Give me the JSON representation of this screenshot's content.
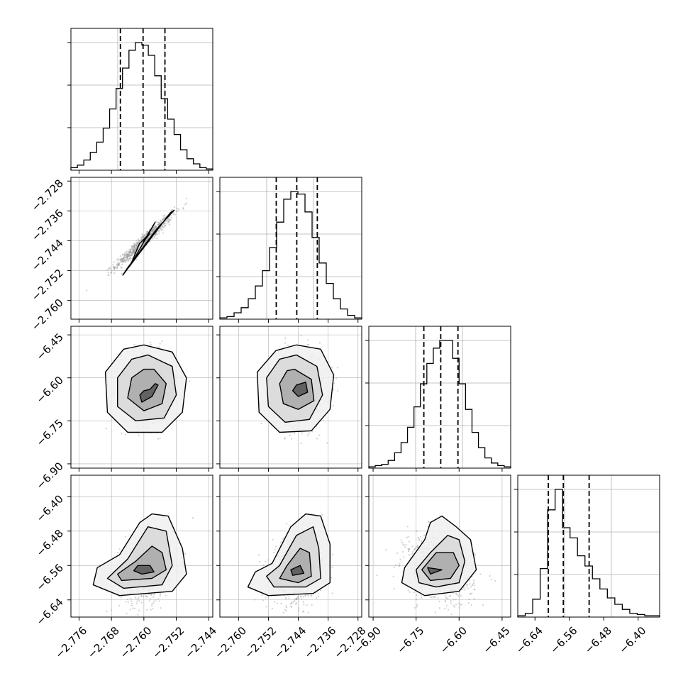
{
  "colors": {
    "axis": "#000000",
    "grid": "#b0b0b0",
    "scatter": "#9a9a9a",
    "contour": "#000000",
    "quantile": "#000000"
  },
  "chart_data": {
    "type": "corner",
    "num_params": 4,
    "quantiles": [
      0.16,
      0.5,
      0.84
    ],
    "params": [
      {
        "range": [
          -2.778,
          -2.743
        ],
        "ticks": [
          -2.776,
          -2.768,
          -2.76,
          -2.752,
          -2.744
        ],
        "tick_labels": [
          "−2.776",
          "−2.768",
          "−2.760",
          "−2.752",
          "−2.744"
        ],
        "quantile_values": [
          -2.7658,
          -2.7602,
          -2.7548
        ]
      },
      {
        "range": [
          -2.765,
          -2.727
        ],
        "ticks": [
          -2.76,
          -2.752,
          -2.744,
          -2.736,
          -2.728
        ],
        "tick_labels": [
          "−2.760",
          "−2.752",
          "−2.744",
          "−2.736",
          "−2.728"
        ],
        "quantile_values": [
          -2.7499,
          -2.7444,
          -2.7389
        ]
      },
      {
        "range": [
          -6.915,
          -6.42
        ],
        "ticks": [
          -6.9,
          -6.75,
          -6.6,
          -6.45
        ],
        "tick_labels": [
          "−6.90",
          "−6.75",
          "−6.60",
          "−6.45"
        ],
        "quantile_values": [
          -6.723,
          -6.664,
          -6.604
        ]
      },
      {
        "range": [
          -6.68,
          -6.35
        ],
        "ticks": [
          -6.64,
          -6.56,
          -6.48,
          -6.4
        ],
        "tick_labels": [
          "−6.64",
          "−6.56",
          "−6.48",
          "−6.40"
        ],
        "quantile_values": [
          -6.609,
          -6.574,
          -6.514
        ]
      }
    ],
    "histograms": [
      [
        2,
        4,
        8,
        14,
        22,
        33,
        48,
        64,
        80,
        94,
        100,
        98,
        90,
        74,
        56,
        40,
        28,
        16,
        9,
        5,
        2,
        1
      ],
      [
        1,
        2,
        5,
        9,
        16,
        26,
        38,
        56,
        76,
        94,
        100,
        98,
        84,
        64,
        44,
        28,
        16,
        8,
        3,
        1
      ],
      [
        1,
        2,
        3,
        6,
        12,
        20,
        32,
        48,
        66,
        82,
        94,
        100,
        100,
        86,
        66,
        46,
        28,
        16,
        8,
        4,
        2,
        1
      ],
      [
        1,
        3,
        14,
        38,
        84,
        100,
        70,
        62,
        48,
        40,
        30,
        22,
        15,
        10,
        6,
        3,
        2,
        1,
        1
      ]
    ],
    "pairs": [
      {
        "row": 1,
        "col": 0,
        "center": [
          -2.76,
          -2.744
        ],
        "sd": [
          0.0035,
          0.0035
        ],
        "corr": 0.97,
        "contours": [
          [
            [
              -2.7633,
              -2.7505
            ],
            [
              -2.7572,
              -2.739
            ],
            [
              -2.7602,
              -2.7444
            ],
            [
              -2.7586,
              -2.7421
            ],
            [
              -2.7611,
              -2.7448
            ]
          ],
          [
            [
              -2.7652,
              -2.7532
            ],
            [
              -2.7535,
              -2.7365
            ],
            [
              -2.7525,
              -2.7358
            ],
            [
              -2.7568,
              -2.7408
            ],
            [
              -2.7642,
              -2.7515
            ]
          ]
        ]
      },
      {
        "row": 2,
        "col": 0,
        "center": [
          -2.759,
          -6.64
        ],
        "sd": [
          0.0032,
          0.065
        ],
        "corr": 0.0,
        "contours": [
          [
            [
              -2.7585,
              -6.64
            ],
            [
              -2.7572,
              -6.62
            ],
            [
              -2.7565,
              -6.625
            ],
            [
              -2.758,
              -6.665
            ],
            [
              -2.7605,
              -6.685
            ],
            [
              -2.761,
              -6.66
            ],
            [
              -2.76,
              -6.645
            ]
          ],
          [
            [
              -2.7575,
              -6.57
            ],
            [
              -2.7545,
              -6.62
            ],
            [
              -2.7555,
              -6.69
            ],
            [
              -2.76,
              -6.715
            ],
            [
              -2.764,
              -6.67
            ],
            [
              -2.763,
              -6.6
            ],
            [
              -2.76,
              -6.57
            ]
          ],
          [
            [
              -2.759,
              -6.52
            ],
            [
              -2.753,
              -6.56
            ],
            [
              -2.752,
              -6.66
            ],
            [
              -2.755,
              -6.74
            ],
            [
              -2.762,
              -6.75
            ],
            [
              -2.7665,
              -6.7
            ],
            [
              -2.7665,
              -6.6
            ],
            [
              -2.763,
              -6.535
            ]
          ],
          [
            [
              -2.76,
              -6.485
            ],
            [
              -2.753,
              -6.51
            ],
            [
              -2.7495,
              -6.6
            ],
            [
              -2.7505,
              -6.72
            ],
            [
              -2.7555,
              -6.79
            ],
            [
              -2.764,
              -6.79
            ],
            [
              -2.769,
              -6.72
            ],
            [
              -2.7695,
              -6.58
            ],
            [
              -2.765,
              -6.5
            ]
          ]
        ]
      },
      {
        "row": 2,
        "col": 1,
        "center": [
          -2.7435,
          -6.64
        ],
        "sd": [
          0.0035,
          0.065
        ],
        "corr": 0.0,
        "contours": [
          [
            [
              -2.7445,
              -6.625
            ],
            [
              -2.742,
              -6.615
            ],
            [
              -2.7415,
              -6.65
            ],
            [
              -2.744,
              -6.665
            ],
            [
              -2.7455,
              -6.645
            ]
          ],
          [
            [
              -2.745,
              -6.57
            ],
            [
              -2.7405,
              -6.605
            ],
            [
              -2.7398,
              -6.68
            ],
            [
              -2.744,
              -6.71
            ],
            [
              -2.748,
              -6.69
            ],
            [
              -2.749,
              -6.62
            ],
            [
              -2.747,
              -6.575
            ]
          ],
          [
            [
              -2.7445,
              -6.52
            ],
            [
              -2.739,
              -6.56
            ],
            [
              -2.7375,
              -6.66
            ],
            [
              -2.741,
              -6.745
            ],
            [
              -2.7475,
              -6.755
            ],
            [
              -2.752,
              -6.7
            ],
            [
              -2.7525,
              -6.6
            ],
            [
              -2.749,
              -6.535
            ]
          ],
          [
            [
              -2.7445,
              -6.485
            ],
            [
              -2.738,
              -6.5
            ],
            [
              -2.7345,
              -6.59
            ],
            [
              -2.7355,
              -6.71
            ],
            [
              -2.7405,
              -6.785
            ],
            [
              -2.749,
              -6.79
            ],
            [
              -2.7545,
              -6.72
            ],
            [
              -2.755,
              -6.58
            ],
            [
              -2.75,
              -6.505
            ]
          ]
        ]
      },
      {
        "row": 3,
        "col": 0,
        "center": [
          -2.7595,
          -6.57
        ],
        "sd": [
          0.0032,
          0.04
        ],
        "corr": 0.25,
        "contours": [
          [
            [
              -2.7615,
              -6.56
            ],
            [
              -2.7585,
              -6.56
            ],
            [
              -2.7575,
              -6.575
            ],
            [
              -2.7605,
              -6.58
            ],
            [
              -2.7625,
              -6.572
            ]
          ],
          [
            [
              -2.762,
              -6.55
            ],
            [
              -2.758,
              -6.515
            ],
            [
              -2.7555,
              -6.53
            ],
            [
              -2.7545,
              -6.57
            ],
            [
              -2.758,
              -6.59
            ],
            [
              -2.7655,
              -6.595
            ],
            [
              -2.7665,
              -6.58
            ]
          ],
          [
            [
              -2.764,
              -6.545
            ],
            [
              -2.759,
              -6.47
            ],
            [
              -2.7545,
              -6.48
            ],
            [
              -2.753,
              -6.56
            ],
            [
              -2.7555,
              -6.605
            ],
            [
              -2.765,
              -6.613
            ],
            [
              -2.769,
              -6.59
            ]
          ],
          [
            [
              -2.766,
              -6.535
            ],
            [
              -2.761,
              -6.46
            ],
            [
              -2.758,
              -6.44
            ],
            [
              -2.754,
              -6.445
            ],
            [
              -2.7505,
              -6.52
            ],
            [
              -2.7495,
              -6.58
            ],
            [
              -2.753,
              -6.62
            ],
            [
              -2.766,
              -6.63
            ],
            [
              -2.7725,
              -6.605
            ],
            [
              -2.7715,
              -6.565
            ]
          ]
        ]
      },
      {
        "row": 3,
        "col": 1,
        "center": [
          -2.744,
          -6.57
        ],
        "sd": [
          0.0035,
          0.04
        ],
        "corr": 0.25,
        "contours": [
          [
            [
              -2.746,
              -6.57
            ],
            [
              -2.7435,
              -6.56
            ],
            [
              -2.7425,
              -6.578
            ],
            [
              -2.7455,
              -6.583
            ]
          ],
          [
            [
              -2.747,
              -6.56
            ],
            [
              -2.7435,
              -6.52
            ],
            [
              -2.741,
              -6.53
            ],
            [
              -2.7405,
              -6.585
            ],
            [
              -2.744,
              -6.6
            ],
            [
              -2.749,
              -6.59
            ]
          ],
          [
            [
              -2.749,
              -6.56
            ],
            [
              -2.7445,
              -6.49
            ],
            [
              -2.74,
              -6.47
            ],
            [
              -2.7385,
              -6.52
            ],
            [
              -2.738,
              -6.59
            ],
            [
              -2.742,
              -6.61
            ],
            [
              -2.7505,
              -6.61
            ],
            [
              -2.7525,
              -6.585
            ]
          ],
          [
            [
              -2.751,
              -6.555
            ],
            [
              -2.746,
              -6.47
            ],
            [
              -2.742,
              -6.44
            ],
            [
              -2.738,
              -6.445
            ],
            [
              -2.7355,
              -6.51
            ],
            [
              -2.7355,
              -6.6
            ],
            [
              -2.74,
              -6.625
            ],
            [
              -2.752,
              -6.63
            ],
            [
              -2.7575,
              -6.61
            ],
            [
              -2.7555,
              -6.575
            ]
          ]
        ]
      },
      {
        "row": 3,
        "col": 2,
        "center": [
          -6.67,
          -6.57
        ],
        "sd": [
          0.06,
          0.04
        ],
        "corr": -0.3,
        "contours": [
          [
            [
              -6.71,
              -6.565
            ],
            [
              -6.66,
              -6.57
            ],
            [
              -6.7,
              -6.58
            ]
          ],
          [
            [
              -6.73,
              -6.57
            ],
            [
              -6.68,
              -6.53
            ],
            [
              -6.62,
              -6.53
            ],
            [
              -6.6,
              -6.56
            ],
            [
              -6.63,
              -6.59
            ],
            [
              -6.7,
              -6.595
            ]
          ],
          [
            [
              -6.75,
              -6.57
            ],
            [
              -6.7,
              -6.53
            ],
            [
              -6.64,
              -6.49
            ],
            [
              -6.6,
              -6.5
            ],
            [
              -6.58,
              -6.55
            ],
            [
              -6.6,
              -6.6
            ],
            [
              -6.68,
              -6.61
            ],
            [
              -6.74,
              -6.6
            ]
          ],
          [
            [
              -6.79,
              -6.565
            ],
            [
              -6.72,
              -6.5
            ],
            [
              -6.7,
              -6.46
            ],
            [
              -6.66,
              -6.445
            ],
            [
              -6.61,
              -6.47
            ],
            [
              -6.56,
              -6.5
            ],
            [
              -6.54,
              -6.57
            ],
            [
              -6.6,
              -6.62
            ],
            [
              -6.72,
              -6.63
            ],
            [
              -6.8,
              -6.6
            ]
          ]
        ]
      }
    ]
  }
}
